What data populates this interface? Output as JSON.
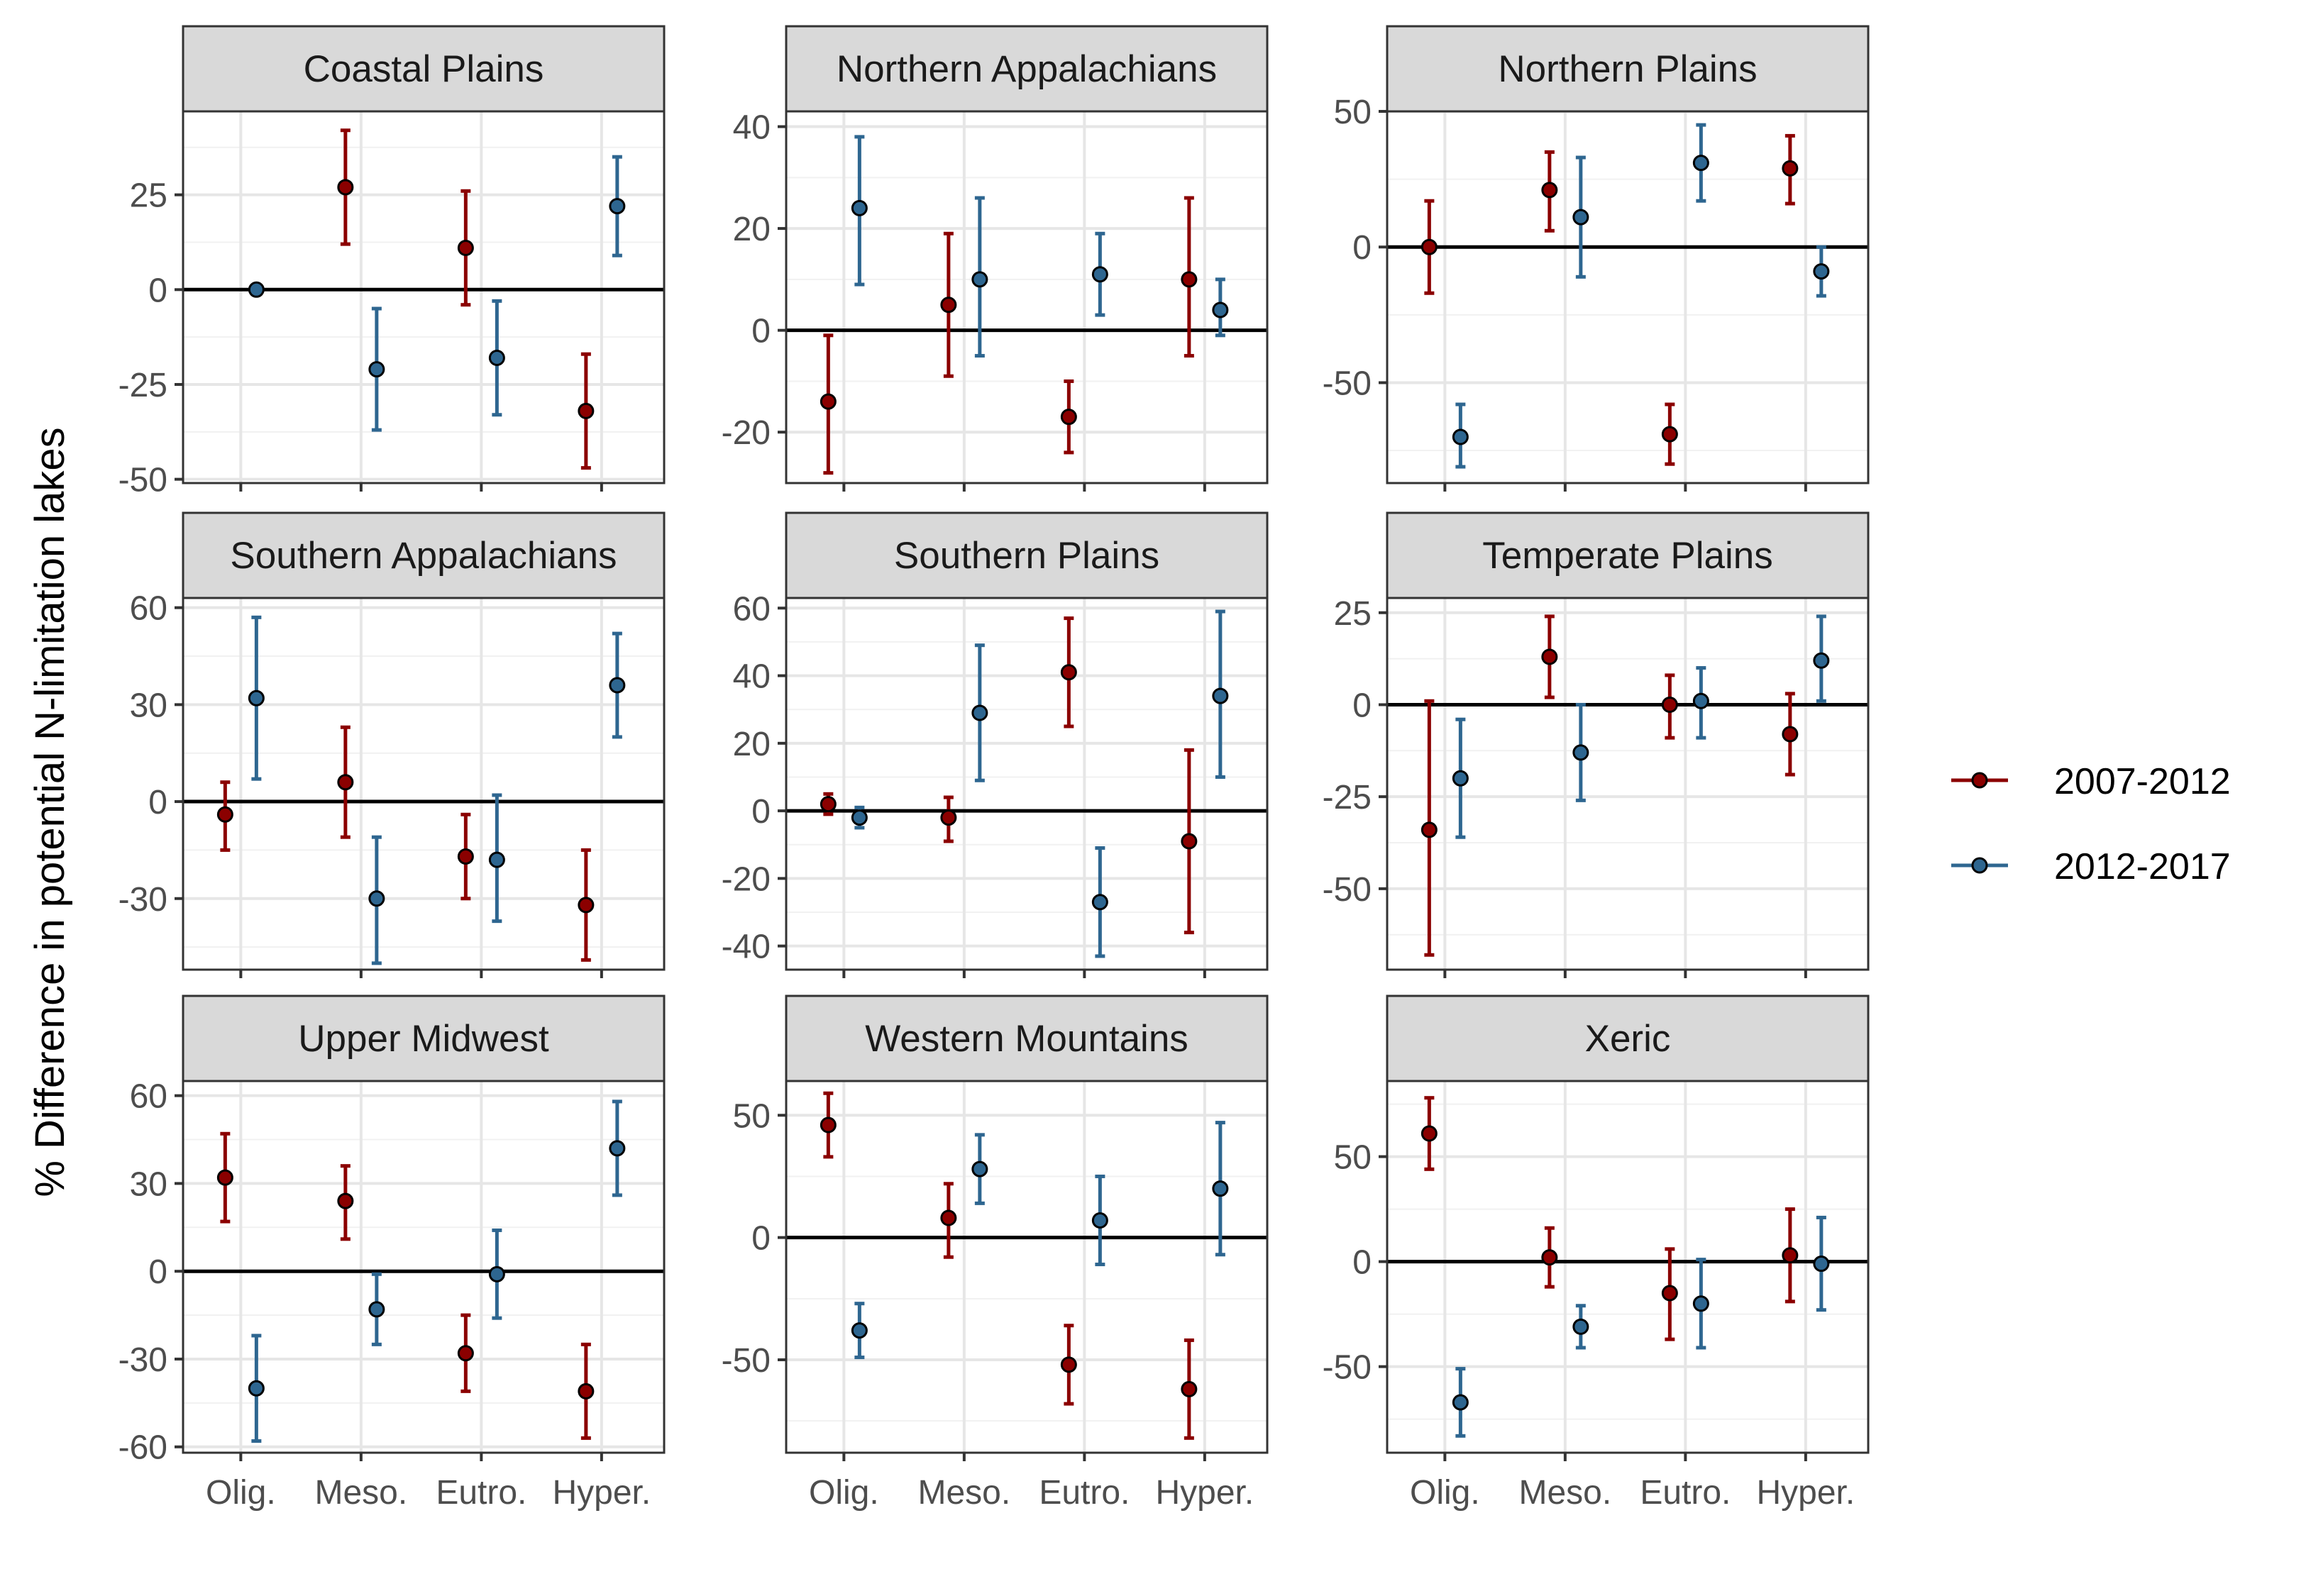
{
  "chart_data": {
    "type": "scatter",
    "subtype": "point-with-errorbars, faceted 3x3",
    "ylabel": "% Difference in potential N-limitation lakes",
    "xlabel": "",
    "categories": [
      "Olig.",
      "Meso.",
      "Eutro.",
      "Hyper."
    ],
    "grid": true,
    "reference_line_y": 0,
    "legend": {
      "position": "right",
      "entries": [
        {
          "label": "2007-2012",
          "color": "#8b0000"
        },
        {
          "label": "2012-2017",
          "color": "#2e6690"
        }
      ]
    },
    "facets": [
      {
        "title": "Coastal Plains",
        "ylim": [
          -51,
          47
        ],
        "yticks": [
          -50,
          -25,
          0,
          25
        ],
        "series": [
          {
            "name": "2007-2012",
            "color": "#8b0000",
            "points": [
              {
                "x": "Meso.",
                "y": 27,
                "lo": 12,
                "hi": 42
              },
              {
                "x": "Eutro.",
                "y": 11,
                "lo": -4,
                "hi": 26
              },
              {
                "x": "Hyper.",
                "y": -32,
                "lo": -47,
                "hi": -17
              }
            ]
          },
          {
            "name": "2012-2017",
            "color": "#2e6690",
            "points": [
              {
                "x": "Olig.",
                "y": 0,
                "lo": 0,
                "hi": 0
              },
              {
                "x": "Meso.",
                "y": -21,
                "lo": -37,
                "hi": -5
              },
              {
                "x": "Eutro.",
                "y": -18,
                "lo": -33,
                "hi": -3
              },
              {
                "x": "Hyper.",
                "y": 22,
                "lo": 9,
                "hi": 35
              }
            ]
          }
        ]
      },
      {
        "title": "Northern Appalachians",
        "ylim": [
          -30,
          43
        ],
        "yticks": [
          -20,
          0,
          20,
          40
        ],
        "series": [
          {
            "name": "2007-2012",
            "color": "#8b0000",
            "points": [
              {
                "x": "Olig.",
                "y": -14,
                "lo": -28,
                "hi": -1
              },
              {
                "x": "Meso.",
                "y": 5,
                "lo": -9,
                "hi": 19
              },
              {
                "x": "Eutro.",
                "y": -17,
                "lo": -24,
                "hi": -10
              },
              {
                "x": "Hyper.",
                "y": 10,
                "lo": -5,
                "hi": 26
              }
            ]
          },
          {
            "name": "2012-2017",
            "color": "#2e6690",
            "points": [
              {
                "x": "Olig.",
                "y": 24,
                "lo": 9,
                "hi": 38
              },
              {
                "x": "Meso.",
                "y": 10,
                "lo": -5,
                "hi": 26
              },
              {
                "x": "Eutro.",
                "y": 11,
                "lo": 3,
                "hi": 19
              },
              {
                "x": "Hyper.",
                "y": 4,
                "lo": -1,
                "hi": 10
              }
            ]
          }
        ]
      },
      {
        "title": "Northern Plains",
        "ylim": [
          -87,
          50
        ],
        "yticks": [
          -50,
          0,
          50
        ],
        "series": [
          {
            "name": "2007-2012",
            "color": "#8b0000",
            "points": [
              {
                "x": "Olig.",
                "y": 0,
                "lo": -17,
                "hi": 17
              },
              {
                "x": "Meso.",
                "y": 21,
                "lo": 6,
                "hi": 35
              },
              {
                "x": "Eutro.",
                "y": -69,
                "lo": -80,
                "hi": -58
              },
              {
                "x": "Hyper.",
                "y": 29,
                "lo": 16,
                "hi": 41
              }
            ]
          },
          {
            "name": "2012-2017",
            "color": "#2e6690",
            "points": [
              {
                "x": "Olig.",
                "y": -70,
                "lo": -81,
                "hi": -58
              },
              {
                "x": "Meso.",
                "y": 11,
                "lo": -11,
                "hi": 33
              },
              {
                "x": "Eutro.",
                "y": 31,
                "lo": 17,
                "hi": 45
              },
              {
                "x": "Hyper.",
                "y": -9,
                "lo": -18,
                "hi": 0
              }
            ]
          }
        ]
      },
      {
        "title": "Southern Appalachians",
        "ylim": [
          -52,
          63
        ],
        "yticks": [
          -30,
          0,
          30,
          60
        ],
        "series": [
          {
            "name": "2007-2012",
            "color": "#8b0000",
            "points": [
              {
                "x": "Olig.",
                "y": -4,
                "lo": -15,
                "hi": 6
              },
              {
                "x": "Meso.",
                "y": 6,
                "lo": -11,
                "hi": 23
              },
              {
                "x": "Eutro.",
                "y": -17,
                "lo": -30,
                "hi": -4
              },
              {
                "x": "Hyper.",
                "y": -32,
                "lo": -49,
                "hi": -15
              }
            ]
          },
          {
            "name": "2012-2017",
            "color": "#2e6690",
            "points": [
              {
                "x": "Olig.",
                "y": 32,
                "lo": 7,
                "hi": 57
              },
              {
                "x": "Meso.",
                "y": -30,
                "lo": -50,
                "hi": -11
              },
              {
                "x": "Eutro.",
                "y": -18,
                "lo": -37,
                "hi": 2
              },
              {
                "x": "Hyper.",
                "y": 36,
                "lo": 20,
                "hi": 52
              }
            ]
          }
        ]
      },
      {
        "title": "Southern Plains",
        "ylim": [
          -47,
          63
        ],
        "yticks": [
          -40,
          -20,
          0,
          20,
          40,
          60
        ],
        "series": [
          {
            "name": "2007-2012",
            "color": "#8b0000",
            "points": [
              {
                "x": "Olig.",
                "y": 2,
                "lo": -1,
                "hi": 5
              },
              {
                "x": "Meso.",
                "y": -2,
                "lo": -9,
                "hi": 4
              },
              {
                "x": "Eutro.",
                "y": 41,
                "lo": 25,
                "hi": 57
              },
              {
                "x": "Hyper.",
                "y": -9,
                "lo": -36,
                "hi": 18
              }
            ]
          },
          {
            "name": "2012-2017",
            "color": "#2e6690",
            "points": [
              {
                "x": "Olig.",
                "y": -2,
                "lo": -5,
                "hi": 1
              },
              {
                "x": "Meso.",
                "y": 29,
                "lo": 9,
                "hi": 49
              },
              {
                "x": "Eutro.",
                "y": -27,
                "lo": -43,
                "hi": -11
              },
              {
                "x": "Hyper.",
                "y": 34,
                "lo": 10,
                "hi": 59
              }
            ]
          }
        ]
      },
      {
        "title": "Temperate Plains",
        "ylim": [
          -72,
          29
        ],
        "yticks": [
          -50,
          -25,
          0,
          25
        ],
        "series": [
          {
            "name": "2007-2012",
            "color": "#8b0000",
            "points": [
              {
                "x": "Olig.",
                "y": -34,
                "lo": -68,
                "hi": 1
              },
              {
                "x": "Meso.",
                "y": 13,
                "lo": 2,
                "hi": 24
              },
              {
                "x": "Eutro.",
                "y": 0,
                "lo": -9,
                "hi": 8
              },
              {
                "x": "Hyper.",
                "y": -8,
                "lo": -19,
                "hi": 3
              }
            ]
          },
          {
            "name": "2012-2017",
            "color": "#2e6690",
            "points": [
              {
                "x": "Olig.",
                "y": -20,
                "lo": -36,
                "hi": -4
              },
              {
                "x": "Meso.",
                "y": -13,
                "lo": -26,
                "hi": 0
              },
              {
                "x": "Eutro.",
                "y": 1,
                "lo": -9,
                "hi": 10
              },
              {
                "x": "Hyper.",
                "y": 12,
                "lo": 1,
                "hi": 24
              }
            ]
          }
        ]
      },
      {
        "title": "Upper Midwest",
        "ylim": [
          -62,
          65
        ],
        "yticks": [
          -60,
          -30,
          0,
          30,
          60
        ],
        "series": [
          {
            "name": "2007-2012",
            "color": "#8b0000",
            "points": [
              {
                "x": "Olig.",
                "y": 32,
                "lo": 17,
                "hi": 47
              },
              {
                "x": "Meso.",
                "y": 24,
                "lo": 11,
                "hi": 36
              },
              {
                "x": "Eutro.",
                "y": -28,
                "lo": -41,
                "hi": -15
              },
              {
                "x": "Hyper.",
                "y": -41,
                "lo": -57,
                "hi": -25
              }
            ]
          },
          {
            "name": "2012-2017",
            "color": "#2e6690",
            "points": [
              {
                "x": "Olig.",
                "y": -40,
                "lo": -58,
                "hi": -22
              },
              {
                "x": "Meso.",
                "y": -13,
                "lo": -25,
                "hi": -1
              },
              {
                "x": "Eutro.",
                "y": -1,
                "lo": -16,
                "hi": 14
              },
              {
                "x": "Hyper.",
                "y": 42,
                "lo": 26,
                "hi": 58
              }
            ]
          }
        ]
      },
      {
        "title": "Western Mountains",
        "ylim": [
          -88,
          64
        ],
        "yticks": [
          -50,
          0,
          50
        ],
        "series": [
          {
            "name": "2007-2012",
            "color": "#8b0000",
            "points": [
              {
                "x": "Olig.",
                "y": 46,
                "lo": 33,
                "hi": 59
              },
              {
                "x": "Meso.",
                "y": 8,
                "lo": -8,
                "hi": 22
              },
              {
                "x": "Eutro.",
                "y": -52,
                "lo": -68,
                "hi": -36
              },
              {
                "x": "Hyper.",
                "y": -62,
                "lo": -82,
                "hi": -42
              }
            ]
          },
          {
            "name": "2012-2017",
            "color": "#2e6690",
            "points": [
              {
                "x": "Olig.",
                "y": -38,
                "lo": -49,
                "hi": -27
              },
              {
                "x": "Meso.",
                "y": 28,
                "lo": 14,
                "hi": 42
              },
              {
                "x": "Eutro.",
                "y": 7,
                "lo": -11,
                "hi": 25
              },
              {
                "x": "Hyper.",
                "y": 20,
                "lo": -7,
                "hi": 47
              }
            ]
          }
        ]
      },
      {
        "title": "Xeric",
        "ylim": [
          -91,
          86
        ],
        "yticks": [
          -50,
          0,
          50
        ],
        "series": [
          {
            "name": "2007-2012",
            "color": "#8b0000",
            "points": [
              {
                "x": "Olig.",
                "y": 61,
                "lo": 44,
                "hi": 78
              },
              {
                "x": "Meso.",
                "y": 2,
                "lo": -12,
                "hi": 16
              },
              {
                "x": "Eutro.",
                "y": -15,
                "lo": -37,
                "hi": 6
              },
              {
                "x": "Hyper.",
                "y": 3,
                "lo": -19,
                "hi": 25
              }
            ]
          },
          {
            "name": "2012-2017",
            "color": "#2e6690",
            "points": [
              {
                "x": "Olig.",
                "y": -67,
                "lo": -83,
                "hi": -51
              },
              {
                "x": "Meso.",
                "y": -31,
                "lo": -41,
                "hi": -21
              },
              {
                "x": "Eutro.",
                "y": -20,
                "lo": -41,
                "hi": 1
              },
              {
                "x": "Hyper.",
                "y": -1,
                "lo": -23,
                "hi": 21
              }
            ]
          }
        ]
      }
    ]
  }
}
